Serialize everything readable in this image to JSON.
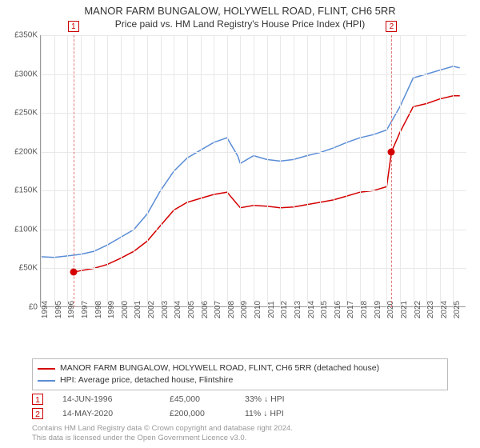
{
  "title": "MANOR FARM BUNGALOW, HOLYWELL ROAD, FLINT, CH6 5RR",
  "subtitle": "Price paid vs. HM Land Registry's House Price Index (HPI)",
  "chart": {
    "type": "line",
    "background_color": "#ffffff",
    "grid_color": "#e8e8e8",
    "axis_color": "#999999",
    "label_color": "#555555",
    "y": {
      "min": 0,
      "max": 350000,
      "step": 50000,
      "ticks": [
        "£0",
        "£50K",
        "£100K",
        "£150K",
        "£200K",
        "£250K",
        "£300K",
        "£350K"
      ]
    },
    "x": {
      "min": 1994,
      "max": 2026,
      "ticks": [
        1994,
        1995,
        1996,
        1997,
        1998,
        1999,
        2000,
        2001,
        2002,
        2003,
        2004,
        2005,
        2006,
        2007,
        2008,
        2009,
        2010,
        2011,
        2012,
        2013,
        2014,
        2015,
        2016,
        2017,
        2018,
        2019,
        2020,
        2021,
        2022,
        2023,
        2024,
        2025
      ]
    },
    "series": [
      {
        "name": "MANOR FARM BUNGALOW, HOLYWELL ROAD, FLINT, CH6 5RR (detached house)",
        "color": "#d40000",
        "line_width": 1.5,
        "points": [
          [
            1996.45,
            45000
          ],
          [
            1997,
            47000
          ],
          [
            1998,
            50000
          ],
          [
            1999,
            55000
          ],
          [
            2000,
            63000
          ],
          [
            2001,
            72000
          ],
          [
            2002,
            85000
          ],
          [
            2003,
            105000
          ],
          [
            2004,
            125000
          ],
          [
            2005,
            135000
          ],
          [
            2006,
            140000
          ],
          [
            2007,
            145000
          ],
          [
            2008,
            148000
          ],
          [
            2008.8,
            132000
          ],
          [
            2009,
            128000
          ],
          [
            2010,
            131000
          ],
          [
            2011,
            130000
          ],
          [
            2012,
            128000
          ],
          [
            2013,
            129000
          ],
          [
            2014,
            132000
          ],
          [
            2015,
            135000
          ],
          [
            2016,
            138000
          ],
          [
            2017,
            143000
          ],
          [
            2018,
            148000
          ],
          [
            2019,
            150000
          ],
          [
            2020,
            155000
          ],
          [
            2020.37,
            200000
          ],
          [
            2021,
            225000
          ],
          [
            2022,
            258000
          ],
          [
            2023,
            262000
          ],
          [
            2024,
            268000
          ],
          [
            2025,
            272000
          ],
          [
            2025.5,
            272000
          ]
        ]
      },
      {
        "name": "HPI: Average price, detached house, Flintshire",
        "color": "#5b8dd6",
        "line_width": 1.5,
        "points": [
          [
            1994,
            65000
          ],
          [
            1995,
            64000
          ],
          [
            1996,
            66000
          ],
          [
            1997,
            68000
          ],
          [
            1998,
            72000
          ],
          [
            1999,
            80000
          ],
          [
            2000,
            90000
          ],
          [
            2001,
            100000
          ],
          [
            2002,
            120000
          ],
          [
            2003,
            150000
          ],
          [
            2004,
            175000
          ],
          [
            2005,
            192000
          ],
          [
            2006,
            202000
          ],
          [
            2007,
            212000
          ],
          [
            2008,
            218000
          ],
          [
            2008.8,
            195000
          ],
          [
            2009,
            185000
          ],
          [
            2010,
            195000
          ],
          [
            2011,
            190000
          ],
          [
            2012,
            188000
          ],
          [
            2013,
            190000
          ],
          [
            2014,
            195000
          ],
          [
            2015,
            199000
          ],
          [
            2016,
            205000
          ],
          [
            2017,
            212000
          ],
          [
            2018,
            218000
          ],
          [
            2019,
            222000
          ],
          [
            2020,
            228000
          ],
          [
            2021,
            258000
          ],
          [
            2022,
            295000
          ],
          [
            2023,
            300000
          ],
          [
            2024,
            305000
          ],
          [
            2025,
            310000
          ],
          [
            2025.5,
            308000
          ]
        ]
      }
    ],
    "sales": [
      {
        "n": "1",
        "year": 1996.45,
        "price": 45000,
        "date": "14-JUN-1996",
        "price_label": "£45,000",
        "hpi_label": "33%  ↓ HPI"
      },
      {
        "n": "2",
        "year": 2020.37,
        "price": 200000,
        "date": "14-MAY-2020",
        "price_label": "£200,000",
        "hpi_label": "11%  ↓ HPI"
      }
    ],
    "sale_line_color": "#e07878",
    "sale_dot_color": "#d40000"
  },
  "legend_border": "#bbbbbb",
  "credits": {
    "line1": "Contains HM Land Registry data © Crown copyright and database right 2024.",
    "line2": "This data is licensed under the Open Government Licence v3.0."
  }
}
